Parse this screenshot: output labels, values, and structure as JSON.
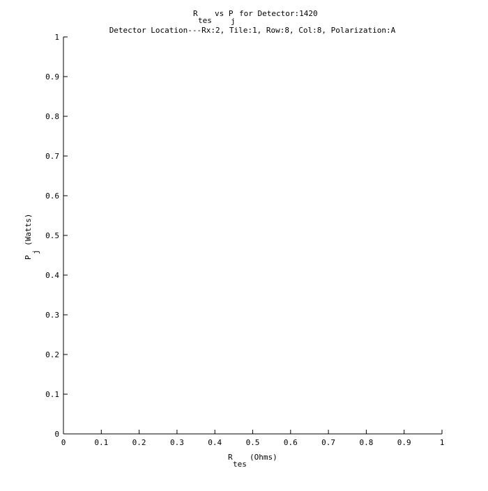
{
  "chart_data": {
    "type": "scatter",
    "title": {
      "r": "R",
      "r_sub": "tes",
      "vs": "vs P",
      "p_sub": "j",
      "rest": "for Detector:1420"
    },
    "subtitle": "Detector Location---Rx:2, Tile:1, Row:8, Col:8, Polarization:A",
    "xlabel": {
      "main": "R",
      "sub": "tes",
      "unit": "(Ohms)"
    },
    "ylabel": {
      "main": "P",
      "sub": "j",
      "unit": "(Watts)"
    },
    "xlim": [
      0,
      1
    ],
    "ylim": [
      0,
      1
    ],
    "xticks": [
      0,
      0.1,
      0.2,
      0.3,
      0.4,
      0.5,
      0.6,
      0.7,
      0.8,
      0.9,
      1
    ],
    "yticks": [
      0,
      0.1,
      0.2,
      0.3,
      0.4,
      0.5,
      0.6,
      0.7,
      0.8,
      0.9,
      1
    ],
    "xtick_labels": [
      "0",
      "0.1",
      "0.2",
      "0.3",
      "0.4",
      "0.5",
      "0.6",
      "0.7",
      "0.8",
      "0.9",
      "1"
    ],
    "ytick_labels": [
      "0",
      "0.1",
      "0.2",
      "0.3",
      "0.4",
      "0.5",
      "0.6",
      "0.7",
      "0.8",
      "0.9",
      "1"
    ],
    "grid": false,
    "series": []
  }
}
